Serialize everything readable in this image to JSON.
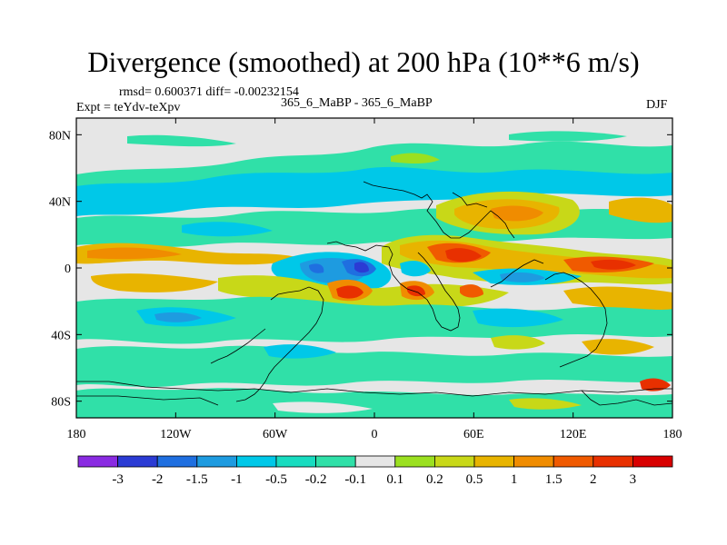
{
  "title": "Divergence (smoothed) at 200 hPa (10**6 m/s)",
  "stats_line": "rmsd= 0.600371 diff= -0.00232154",
  "expt_label": "Expt = teYdv-teXpv",
  "runs_label": "365_6_MaBP - 365_6_MaBP",
  "season": "DJF",
  "lat_ticks": [
    "80N",
    "40N",
    "0",
    "40S",
    "80S"
  ],
  "lon_ticks": [
    "180",
    "120W",
    "60W",
    "0",
    "60E",
    "120E",
    "180"
  ],
  "colorbar": {
    "labels": [
      "-3",
      "-2",
      "-1.5",
      "-1",
      "-0.5",
      "-0.2",
      "-0.1",
      "0.1",
      "0.2",
      "0.5",
      "1",
      "1.5",
      "2",
      "3"
    ],
    "colors": [
      "#8a2be2",
      "#2b3bd4",
      "#1f6fe0",
      "#1e9be0",
      "#00c8e8",
      "#18dcc0",
      "#30e0a8",
      "#e6e6e6",
      "#9be020",
      "#c8d818",
      "#e8b400",
      "#f08c00",
      "#f05a00",
      "#e83000",
      "#d80000"
    ]
  },
  "colors": {
    "background": "#e6e6e6",
    "coast": "#000000"
  }
}
